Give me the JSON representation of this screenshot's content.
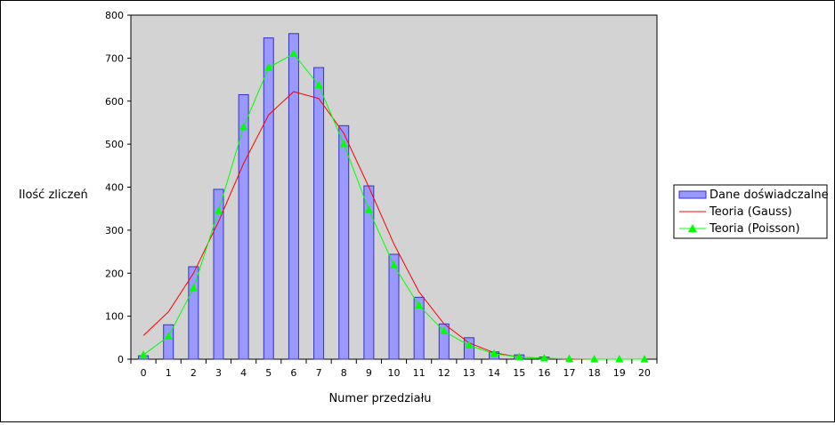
{
  "chart_data": {
    "type": "bar",
    "title": "",
    "xlabel": "Numer przedziału",
    "ylabel": "Ilość zliczeń",
    "categories": [
      "0",
      "1",
      "2",
      "3",
      "4",
      "5",
      "6",
      "7",
      "8",
      "9",
      "10",
      "11",
      "12",
      "13",
      "14",
      "15",
      "16",
      "17",
      "18",
      "19",
      "20"
    ],
    "ylim": [
      0,
      800
    ],
    "yticks": [
      "0",
      "100",
      "200",
      "300",
      "400",
      "500",
      "600",
      "700",
      "800"
    ],
    "grid": false,
    "legend_position": "right",
    "series": [
      {
        "name": "Dane doświadczalne",
        "type": "bar",
        "color": "#9999ff",
        "values": [
          8,
          80,
          215,
          395,
          615,
          747,
          757,
          678,
          543,
          403,
          244,
          144,
          82,
          50,
          17,
          10,
          5,
          1,
          0,
          0,
          0
        ]
      },
      {
        "name": "Teoria (Gauss)",
        "type": "line",
        "color": "#ff0000",
        "values": [
          55,
          110,
          200,
          320,
          455,
          568,
          622,
          606,
          525,
          400,
          268,
          157,
          82,
          38,
          15,
          5,
          2,
          0,
          0,
          0,
          0
        ]
      },
      {
        "name": "Teoria (Poisson)",
        "type": "line",
        "marker": "triangle",
        "color": "#00ff00",
        "values": [
          10,
          53,
          165,
          345,
          540,
          678,
          710,
          637,
          500,
          347,
          218,
          125,
          65,
          32,
          13,
          5,
          2,
          1,
          0,
          0,
          0
        ]
      }
    ],
    "plot_background": "#d3d3d3"
  }
}
